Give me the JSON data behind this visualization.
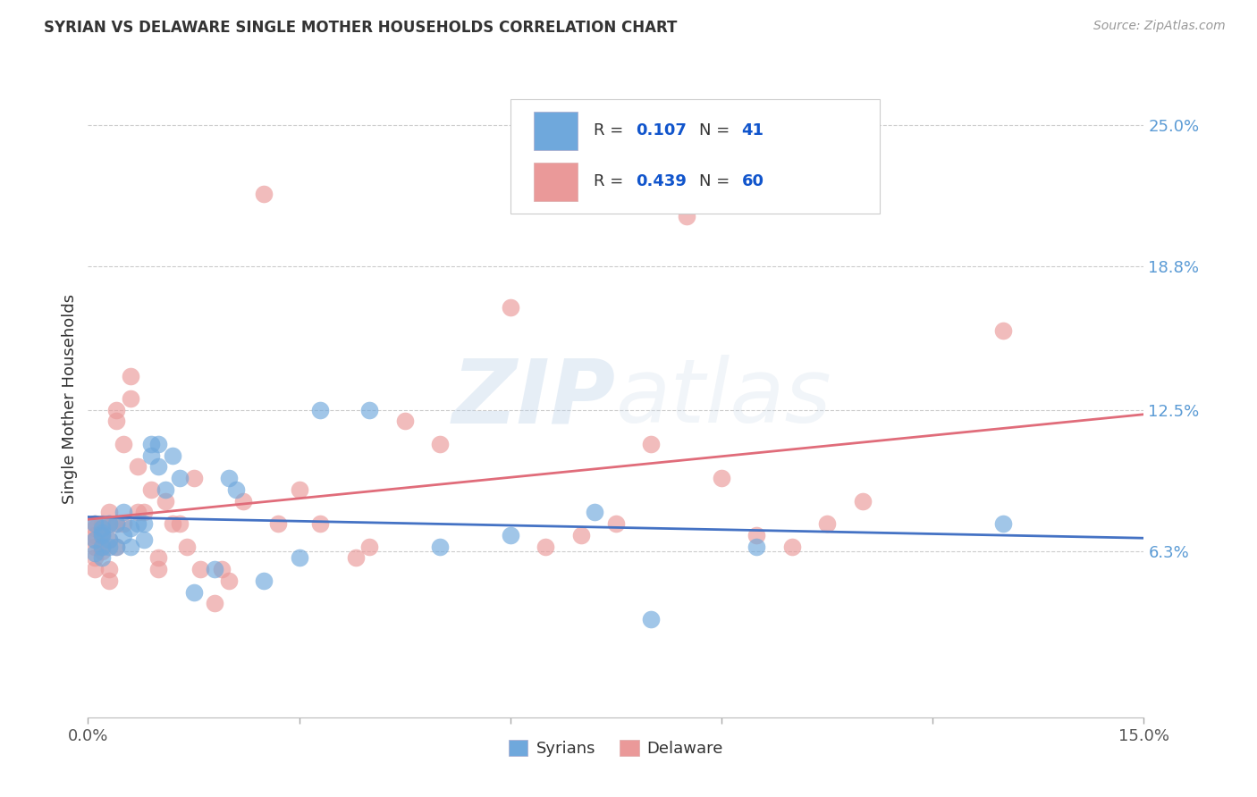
{
  "title": "SYRIAN VS DELAWARE SINGLE MOTHER HOUSEHOLDS CORRELATION CHART",
  "source": "Source: ZipAtlas.com",
  "ylabel": "Single Mother Households",
  "xlabel_syrians": "Syrians",
  "xlabel_delaware": "Delaware",
  "xlim": [
    0.0,
    0.15
  ],
  "ylim": [
    -0.01,
    0.27
  ],
  "ytick_labels_right": [
    "6.3%",
    "12.5%",
    "18.8%",
    "25.0%"
  ],
  "ytick_values_right": [
    0.063,
    0.125,
    0.188,
    0.25
  ],
  "syrians_color": "#6fa8dc",
  "delaware_color": "#ea9999",
  "syrians_line_color": "#4472c4",
  "delaware_line_color": "#e06c7a",
  "legend_R_syrians": "0.107",
  "legend_N_syrians": "41",
  "legend_R_delaware": "0.439",
  "legend_N_delaware": "60",
  "watermark": "ZIPatlas",
  "syrians_x": [
    0.001,
    0.001,
    0.001,
    0.002,
    0.002,
    0.002,
    0.002,
    0.002,
    0.003,
    0.003,
    0.003,
    0.004,
    0.004,
    0.005,
    0.005,
    0.006,
    0.006,
    0.007,
    0.008,
    0.008,
    0.009,
    0.009,
    0.01,
    0.01,
    0.011,
    0.012,
    0.013,
    0.015,
    0.018,
    0.02,
    0.021,
    0.025,
    0.03,
    0.033,
    0.04,
    0.05,
    0.06,
    0.072,
    0.08,
    0.095,
    0.13
  ],
  "syrians_y": [
    0.075,
    0.068,
    0.062,
    0.071,
    0.065,
    0.06,
    0.07,
    0.073,
    0.065,
    0.068,
    0.075,
    0.075,
    0.065,
    0.08,
    0.07,
    0.073,
    0.065,
    0.075,
    0.075,
    0.068,
    0.11,
    0.105,
    0.11,
    0.1,
    0.09,
    0.105,
    0.095,
    0.045,
    0.055,
    0.095,
    0.09,
    0.05,
    0.06,
    0.125,
    0.125,
    0.065,
    0.07,
    0.08,
    0.033,
    0.065,
    0.075
  ],
  "delaware_x": [
    0.001,
    0.001,
    0.001,
    0.001,
    0.001,
    0.001,
    0.001,
    0.002,
    0.002,
    0.002,
    0.002,
    0.003,
    0.003,
    0.003,
    0.003,
    0.003,
    0.004,
    0.004,
    0.004,
    0.004,
    0.005,
    0.005,
    0.006,
    0.006,
    0.007,
    0.007,
    0.008,
    0.009,
    0.01,
    0.01,
    0.011,
    0.012,
    0.013,
    0.014,
    0.015,
    0.016,
    0.018,
    0.019,
    0.02,
    0.022,
    0.025,
    0.027,
    0.03,
    0.033,
    0.038,
    0.04,
    0.045,
    0.05,
    0.06,
    0.065,
    0.07,
    0.075,
    0.08,
    0.085,
    0.09,
    0.095,
    0.1,
    0.105,
    0.11,
    0.13
  ],
  "delaware_y": [
    0.068,
    0.065,
    0.07,
    0.073,
    0.075,
    0.06,
    0.055,
    0.075,
    0.063,
    0.07,
    0.065,
    0.08,
    0.068,
    0.075,
    0.055,
    0.05,
    0.125,
    0.12,
    0.075,
    0.065,
    0.11,
    0.075,
    0.14,
    0.13,
    0.1,
    0.08,
    0.08,
    0.09,
    0.06,
    0.055,
    0.085,
    0.075,
    0.075,
    0.065,
    0.095,
    0.055,
    0.04,
    0.055,
    0.05,
    0.085,
    0.22,
    0.075,
    0.09,
    0.075,
    0.06,
    0.065,
    0.12,
    0.11,
    0.17,
    0.065,
    0.07,
    0.075,
    0.11,
    0.21,
    0.095,
    0.07,
    0.065,
    0.075,
    0.085,
    0.16
  ]
}
